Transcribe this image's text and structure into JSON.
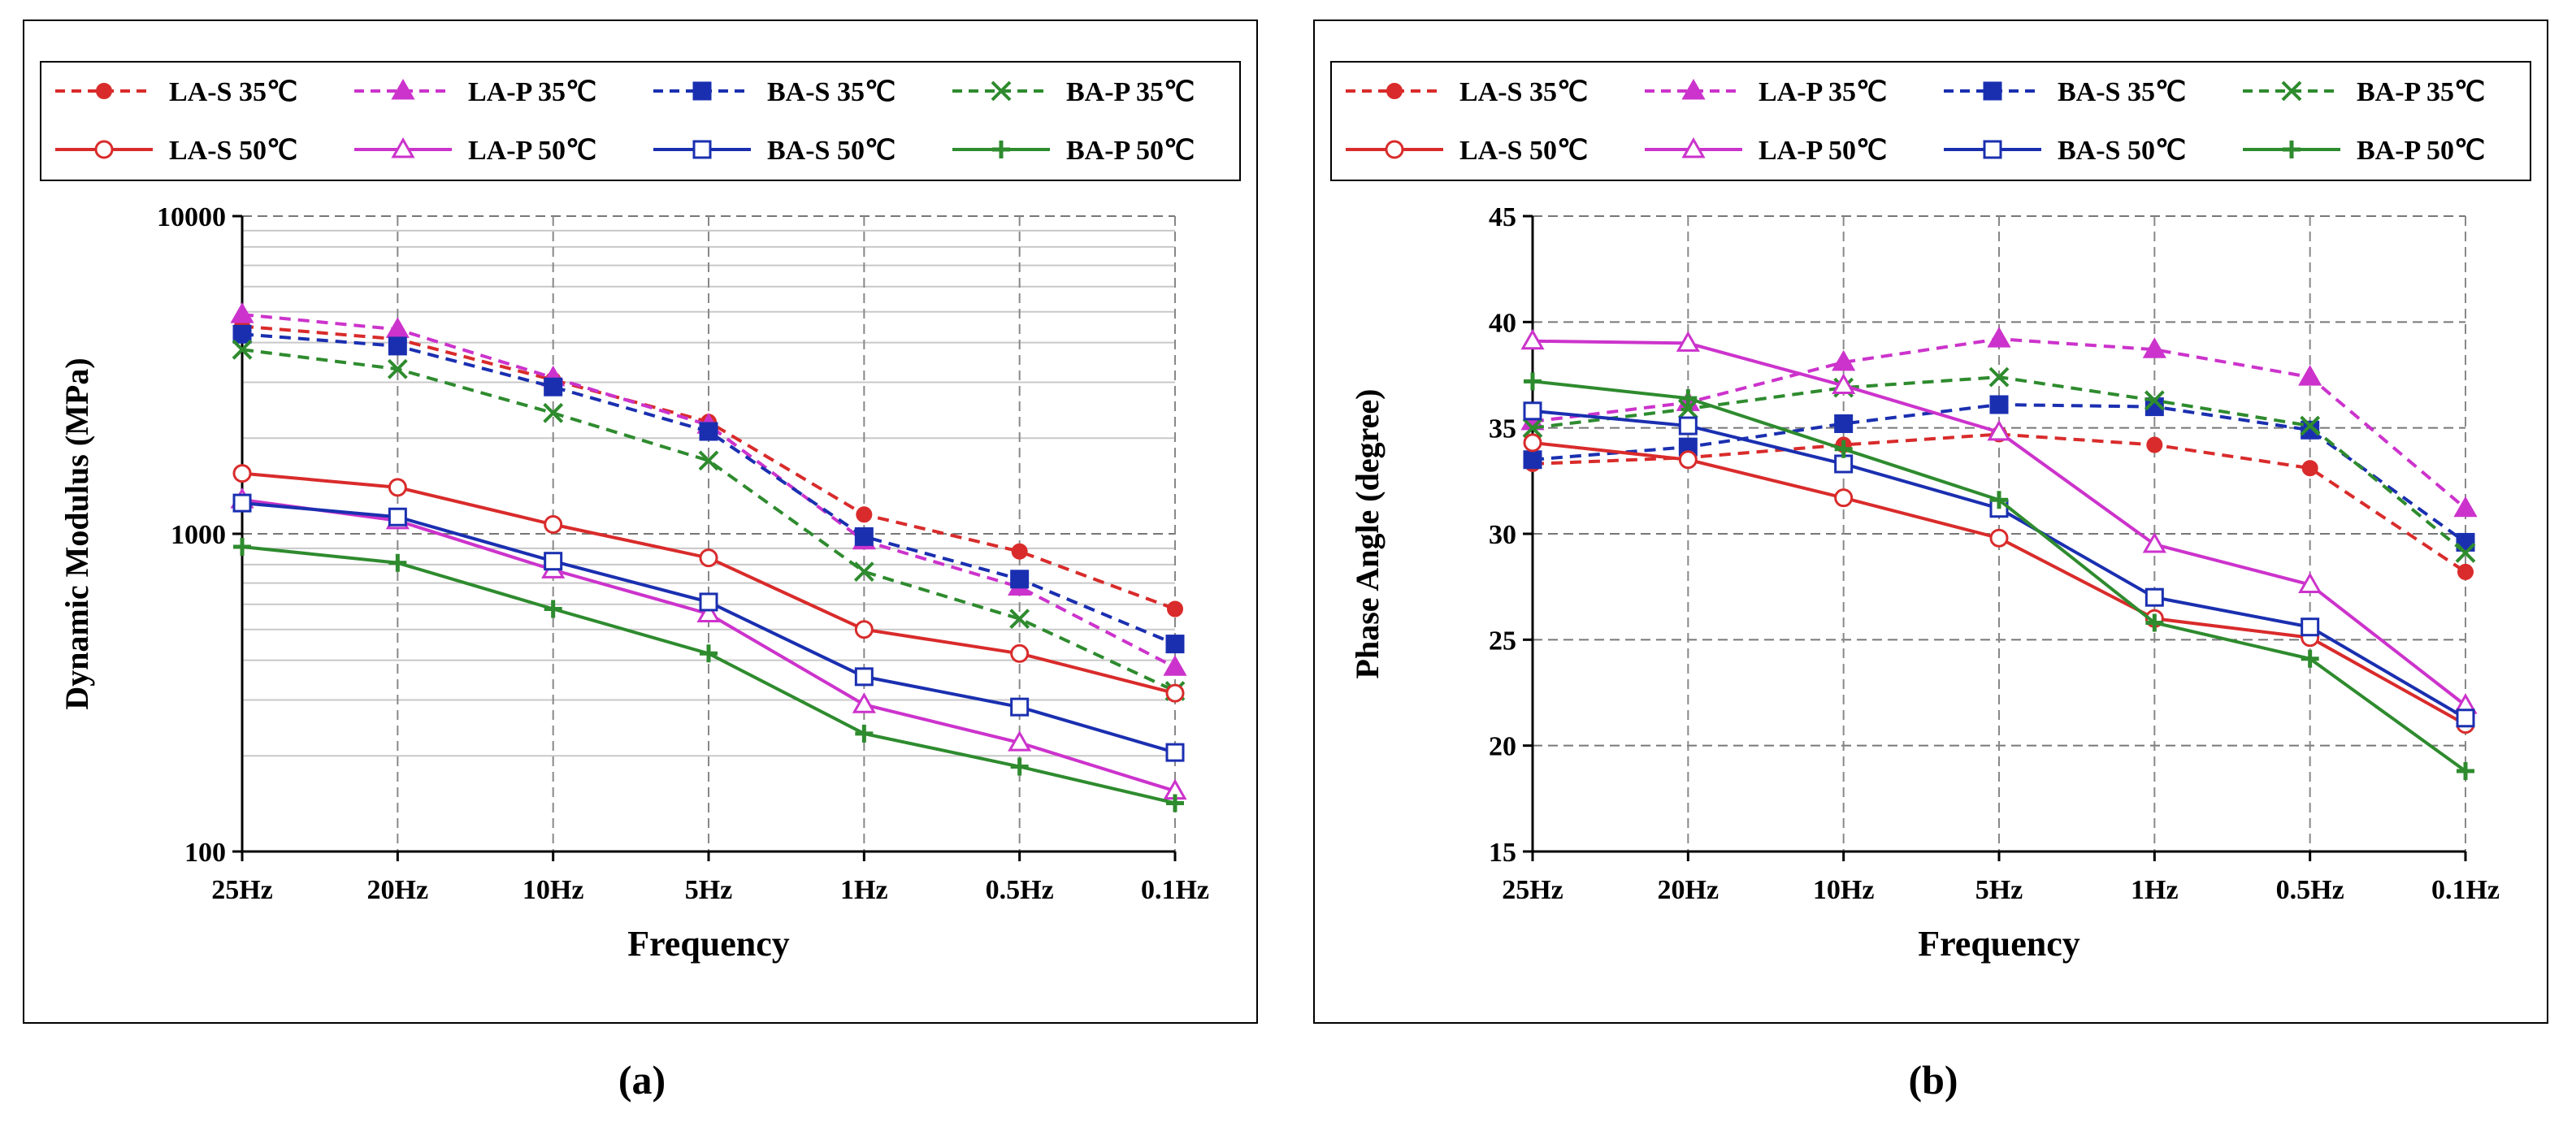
{
  "captions": {
    "a": "(a)",
    "b": "(b)"
  },
  "colors": {
    "LA-S": "#d92b2b",
    "LA-P": "#cc33cc",
    "BA-S": "#1a2fb0",
    "BA-P": "#2e8b2e"
  },
  "chart_data": [
    {
      "type": "line",
      "title": "",
      "xlabel": "Frequency",
      "ylabel": "Dynamic Modulus (MPa)",
      "yscale": "log",
      "ylim": [
        100,
        10000
      ],
      "grid": true,
      "legend_position": "top",
      "categories": [
        "25Hz",
        "20Hz",
        "10Hz",
        "5Hz",
        "1Hz",
        "0.5Hz",
        "0.1Hz"
      ],
      "y_ticks": [
        "100",
        "1000",
        "10000"
      ],
      "y_tick_values": [
        100,
        1000,
        10000
      ],
      "series": [
        {
          "name": "LA-S 35℃",
          "color": "#d92b2b",
          "dash": true,
          "marker": "dot",
          "values": [
            4500,
            4100,
            3050,
            2250,
            1150,
            880,
            580
          ]
        },
        {
          "name": "LA-P 35℃",
          "color": "#cc33cc",
          "dash": true,
          "marker": "tri-filled",
          "values": [
            4900,
            4400,
            3100,
            2200,
            950,
            680,
            380
          ]
        },
        {
          "name": "BA-S 35℃",
          "color": "#1a2fb0",
          "dash": true,
          "marker": "sq-filled",
          "values": [
            4250,
            3900,
            2900,
            2100,
            980,
            720,
            450
          ]
        },
        {
          "name": "BA-P 35℃",
          "color": "#2e8b2e",
          "dash": true,
          "marker": "x",
          "values": [
            3800,
            3300,
            2400,
            1700,
            760,
            540,
            320
          ]
        },
        {
          "name": "LA-S 50℃",
          "color": "#d92b2b",
          "dash": false,
          "marker": "circle-open",
          "values": [
            1550,
            1400,
            1070,
            840,
            500,
            420,
            315
          ]
        },
        {
          "name": "LA-P 50℃",
          "color": "#cc33cc",
          "dash": false,
          "marker": "tri-open",
          "values": [
            1280,
            1100,
            770,
            560,
            290,
            220,
            155
          ]
        },
        {
          "name": "BA-S 50℃",
          "color": "#1a2fb0",
          "dash": false,
          "marker": "sq-open",
          "values": [
            1250,
            1130,
            820,
            610,
            355,
            285,
            205
          ]
        },
        {
          "name": "BA-P 50℃",
          "color": "#2e8b2e",
          "dash": false,
          "marker": "plus",
          "values": [
            910,
            810,
            580,
            420,
            235,
            185,
            142
          ]
        }
      ]
    },
    {
      "type": "line",
      "title": "",
      "xlabel": "Frequency",
      "ylabel": "Phase Angle (degree)",
      "yscale": "linear",
      "ylim": [
        15,
        45
      ],
      "grid": true,
      "legend_position": "top",
      "categories": [
        "25Hz",
        "20Hz",
        "10Hz",
        "5Hz",
        "1Hz",
        "0.5Hz",
        "0.1Hz"
      ],
      "y_ticks": [
        "15",
        "20",
        "25",
        "30",
        "35",
        "40",
        "45"
      ],
      "y_tick_values": [
        15,
        20,
        25,
        30,
        35,
        40,
        45
      ],
      "series": [
        {
          "name": "LA-S 35℃",
          "color": "#d92b2b",
          "dash": true,
          "marker": "dot",
          "values": [
            33.3,
            33.6,
            34.2,
            34.7,
            34.2,
            33.1,
            28.2
          ]
        },
        {
          "name": "LA-P 35℃",
          "color": "#cc33cc",
          "dash": true,
          "marker": "tri-filled",
          "values": [
            35.3,
            36.2,
            38.1,
            39.2,
            38.7,
            37.4,
            31.2
          ]
        },
        {
          "name": "BA-S 35℃",
          "color": "#1a2fb0",
          "dash": true,
          "marker": "sq-filled",
          "values": [
            33.5,
            34.1,
            35.2,
            36.1,
            36.0,
            34.9,
            29.6
          ]
        },
        {
          "name": "BA-P 35℃",
          "color": "#2e8b2e",
          "dash": true,
          "marker": "x",
          "values": [
            35.0,
            35.9,
            36.9,
            37.4,
            36.3,
            35.1,
            29.1
          ]
        },
        {
          "name": "LA-S 50℃",
          "color": "#d92b2b",
          "dash": false,
          "marker": "circle-open",
          "values": [
            34.3,
            33.5,
            31.7,
            29.8,
            26.0,
            25.1,
            21.0
          ]
        },
        {
          "name": "LA-P 50℃",
          "color": "#cc33cc",
          "dash": false,
          "marker": "tri-open",
          "values": [
            39.1,
            39.0,
            37.0,
            34.8,
            29.5,
            27.6,
            21.9
          ]
        },
        {
          "name": "BA-S 50℃",
          "color": "#1a2fb0",
          "dash": false,
          "marker": "sq-open",
          "values": [
            35.8,
            35.1,
            33.3,
            31.2,
            27.0,
            25.6,
            21.3
          ]
        },
        {
          "name": "BA-P 50℃",
          "color": "#2e8b2e",
          "dash": false,
          "marker": "plus",
          "values": [
            37.2,
            36.4,
            34.0,
            31.6,
            25.8,
            24.1,
            18.8
          ]
        }
      ]
    }
  ]
}
